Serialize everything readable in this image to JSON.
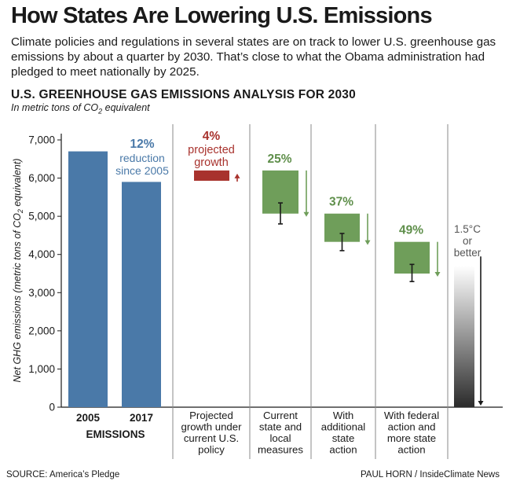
{
  "headline": "How States Are Lowering U.S. Emissions",
  "intro": "Climate policies and regulations in several states are on track to lower U.S. greenhouse gas emissions by about a quarter by 2030. That’s close to what the Obama administration had pledged to meet nationally by 2025.",
  "section_title": "U.S. GREENHOUSE GAS EMISSIONS ANALYSIS FOR 2030",
  "section_subtitle_prefix": "In metric tons of CO",
  "section_subtitle_subscript": "2",
  "section_subtitle_suffix": " equivalent",
  "source": "SOURCE: America’s Pledge",
  "credit": "PAUL HORN / InsideClimate News",
  "colors": {
    "bar_blue": "#4a79a8",
    "bar_green": "#6f9e5a",
    "bar_red": "#a8322d",
    "label_blue": "#4a79a8",
    "label_green": "#5f8f4b",
    "label_red": "#a8322d",
    "axis": "#1a1a1a",
    "divider": "#8a8a8a"
  },
  "chart_data": {
    "type": "bar",
    "ylabel_parts": [
      "Net GHG emissions (metric tons of CO",
      "2",
      " equivalent)"
    ],
    "ylim": [
      0,
      7000
    ],
    "yticks": [
      "0",
      "1,000",
      "2,000",
      "3,000",
      "4,000",
      "5,000",
      "6,000",
      "7,000"
    ],
    "ytick_values": [
      0,
      1000,
      2000,
      3000,
      4000,
      5000,
      6000,
      7000
    ],
    "grid": false,
    "historical": {
      "group_label": "EMISSIONS",
      "bars": [
        {
          "category": "2005",
          "value": 6700
        },
        {
          "category": "2017",
          "value": 5900
        }
      ],
      "annotation": [
        "12%",
        "reduction",
        "since 2005"
      ]
    },
    "projections": [
      {
        "category": [
          "Projected",
          "growth under",
          "current U.S.",
          "policy"
        ],
        "range": [
          5930,
          6200
        ],
        "percent_label": "4%",
        "percent_caption": [
          "projected",
          "growth"
        ],
        "direction": "up",
        "error_bar": null
      },
      {
        "category": [
          "Current",
          "state and",
          "local",
          "measures"
        ],
        "range": [
          5070,
          6200
        ],
        "percent_label": "25%",
        "direction": "down",
        "error_bar": [
          4800,
          5350
        ]
      },
      {
        "category": [
          "With",
          "additional",
          "state",
          "action"
        ],
        "range": [
          4330,
          5070
        ],
        "percent_label": "37%",
        "direction": "down",
        "error_bar": [
          4100,
          4550
        ]
      },
      {
        "category": [
          "With federal",
          "action and",
          "more state",
          "action"
        ],
        "range": [
          3500,
          4330
        ],
        "percent_label": "49%",
        "direction": "down",
        "error_bar": [
          3290,
          3740
        ]
      }
    ],
    "target": {
      "label": [
        "1.5°C",
        "or",
        "better"
      ],
      "gradient_from": 3700,
      "gradient_to": 0
    }
  }
}
